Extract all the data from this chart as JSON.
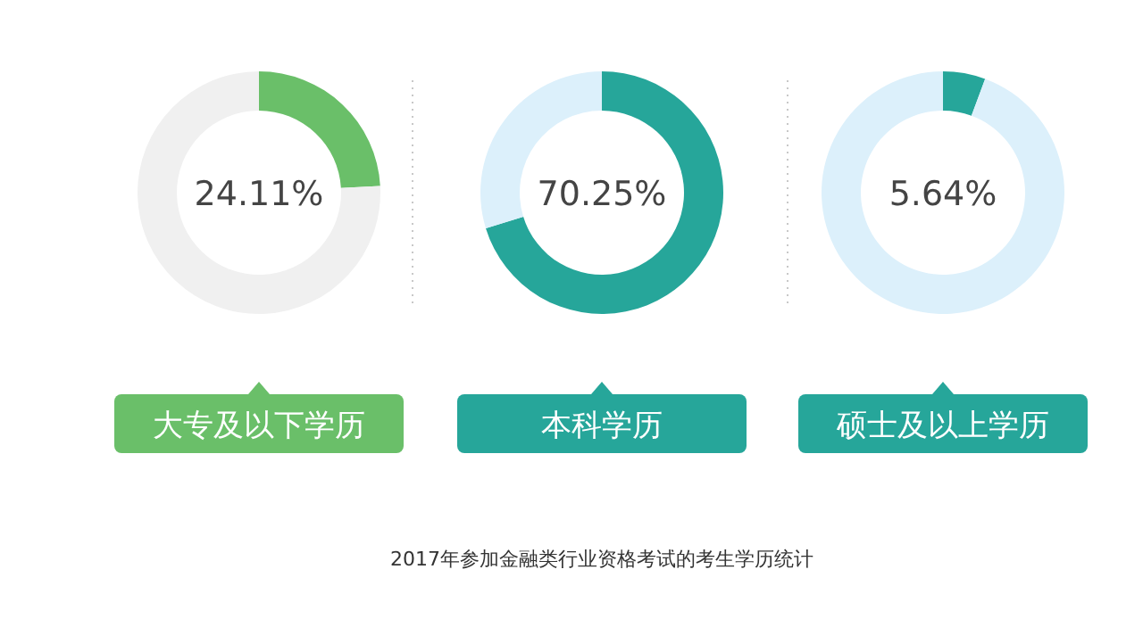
{
  "chart_data": [
    {
      "type": "donut",
      "categories": [
        "大专及以下学历",
        null
      ],
      "values": [
        24.11,
        75.89
      ],
      "colors": [
        "#6abf69",
        "#f0f0f0"
      ],
      "title": "24.11%"
    },
    {
      "type": "donut",
      "categories": [
        "本科学历",
        null
      ],
      "values": [
        70.25,
        29.75
      ],
      "colors": [
        "#26a69a",
        "#dcf0fb"
      ],
      "title": "70.25%",
      "annotations": [
        "2017年参加金融类行业资格考试的考生学历统计"
      ]
    },
    {
      "type": "donut",
      "categories": [
        "硕士及以上学历",
        null
      ],
      "values": [
        5.64,
        94.36
      ],
      "colors": [
        "#26a69a",
        "#dcf0fb"
      ],
      "title": "5.64%"
    }
  ]
}
